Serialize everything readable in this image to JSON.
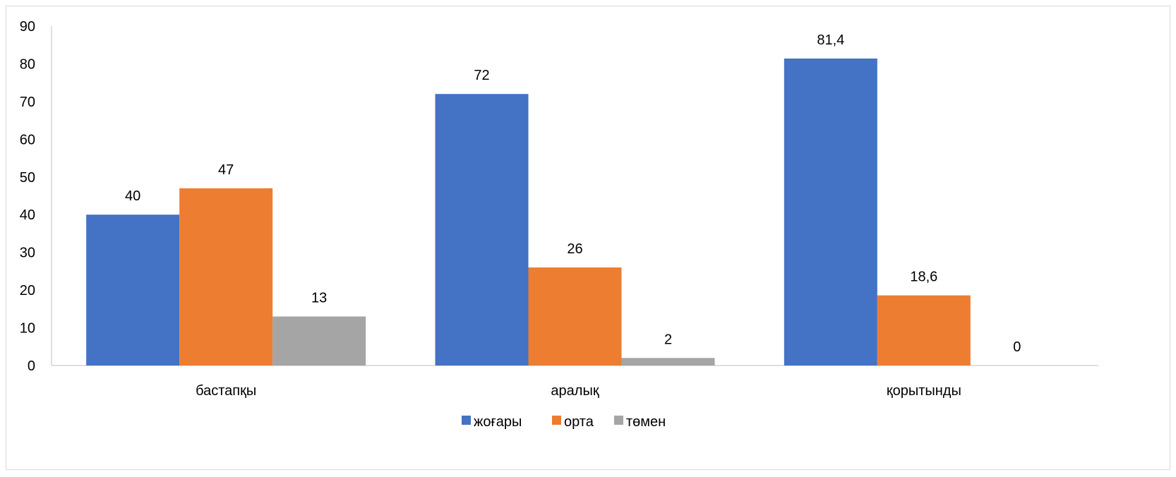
{
  "chart_data": {
    "type": "bar",
    "categories": [
      "бастапқы",
      "аралық",
      "қорытынды"
    ],
    "series": [
      {
        "name": "жоғары",
        "values": [
          40,
          72,
          81.4
        ],
        "labels": [
          "40",
          "72",
          "81,4"
        ],
        "color": "#4472C4"
      },
      {
        "name": "орта",
        "values": [
          47,
          26,
          18.6
        ],
        "labels": [
          "47",
          "26",
          "18,6"
        ],
        "color": "#ED7D31"
      },
      {
        "name": "төмен",
        "values": [
          13,
          2,
          0
        ],
        "labels": [
          "13",
          "2",
          "0"
        ],
        "color": "#A5A5A5"
      }
    ],
    "ylim": [
      0,
      90
    ],
    "yticks": [
      "0",
      "10",
      "20",
      "30",
      "40",
      "50",
      "60",
      "70",
      "80",
      "90"
    ],
    "grid": false,
    "legend_position": "bottom"
  }
}
